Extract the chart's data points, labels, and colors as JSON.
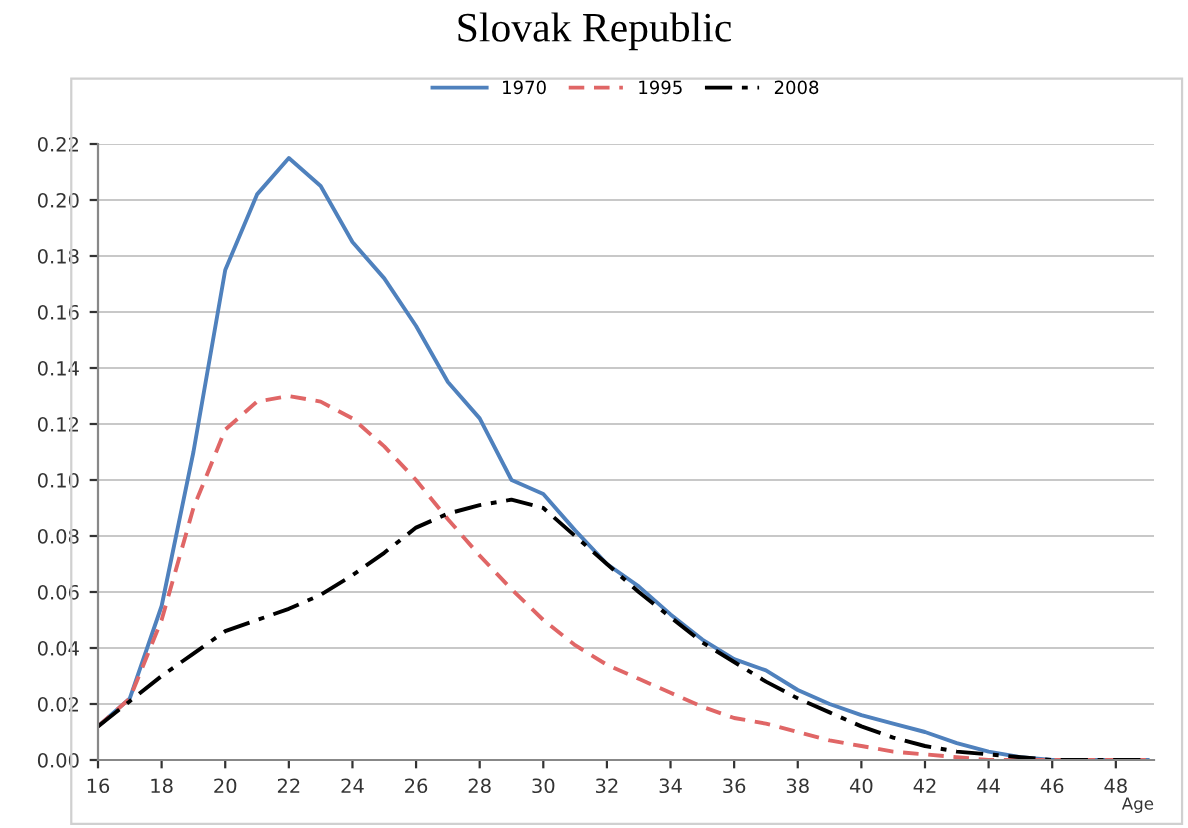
{
  "chart_data": {
    "type": "line",
    "title": "Slovak Republic",
    "xlabel": "Age",
    "x": [
      16,
      17,
      18,
      19,
      20,
      21,
      22,
      23,
      24,
      25,
      26,
      27,
      28,
      29,
      30,
      31,
      32,
      33,
      34,
      35,
      36,
      37,
      38,
      39,
      40,
      41,
      42,
      43,
      44,
      45,
      46,
      47,
      48,
      49
    ],
    "series": [
      {
        "name": "1970",
        "color": "#4f81bd",
        "line_style": "solid",
        "values": [
          0.012,
          0.022,
          0.055,
          0.11,
          0.175,
          0.202,
          0.215,
          0.205,
          0.185,
          0.172,
          0.155,
          0.135,
          0.122,
          0.1,
          0.095,
          0.082,
          0.07,
          0.062,
          0.052,
          0.043,
          0.036,
          0.032,
          0.025,
          0.02,
          0.016,
          0.013,
          0.01,
          0.006,
          0.003,
          0.001,
          0,
          0,
          0,
          0
        ]
      },
      {
        "name": "1995",
        "color": "#e06666",
        "line_style": "dashed",
        "values": [
          0.012,
          0.022,
          0.05,
          0.09,
          0.118,
          0.128,
          0.13,
          0.128,
          0.122,
          0.112,
          0.1,
          0.086,
          0.073,
          0.061,
          0.05,
          0.041,
          0.034,
          0.029,
          0.024,
          0.019,
          0.015,
          0.013,
          0.01,
          0.007,
          0.005,
          0.003,
          0.002,
          0.001,
          0,
          0,
          0,
          0,
          0,
          0
        ]
      },
      {
        "name": "2008",
        "color": "#000000",
        "line_style": "dashdot",
        "values": [
          0.012,
          0.021,
          0.03,
          0.038,
          0.046,
          0.05,
          0.054,
          0.059,
          0.066,
          0.074,
          0.083,
          0.088,
          0.091,
          0.093,
          0.09,
          0.08,
          0.07,
          0.06,
          0.051,
          0.042,
          0.035,
          0.028,
          0.022,
          0.017,
          0.012,
          0.008,
          0.005,
          0.003,
          0.002,
          0.001,
          0,
          0,
          0,
          0
        ]
      }
    ],
    "xlim": [
      16,
      49.2
    ],
    "xticks": [
      16,
      18,
      20,
      22,
      24,
      26,
      28,
      30,
      32,
      34,
      36,
      38,
      40,
      42,
      44,
      46,
      48
    ],
    "ylim": [
      0,
      0.22
    ],
    "yticks": [
      {
        "value": 0,
        "label": "0.00"
      },
      {
        "value": 0.02,
        "label": "0.02"
      },
      {
        "value": 0.04,
        "label": "0.04"
      },
      {
        "value": 0.06,
        "label": "0.06"
      },
      {
        "value": 0.08,
        "label": "0.08"
      },
      {
        "value": 0.1,
        "label": "0.10"
      },
      {
        "value": 0.12,
        "label": "0.12"
      },
      {
        "value": 0.14,
        "label": "0.14"
      },
      {
        "value": 0.16,
        "label": "0.16"
      },
      {
        "value": 0.18,
        "label": "0.18"
      },
      {
        "value": 0.2,
        "label": "0.20"
      },
      {
        "value": 0.22,
        "label": "0.22"
      }
    ],
    "grid": "y",
    "legend": "top",
    "marker": "none"
  }
}
